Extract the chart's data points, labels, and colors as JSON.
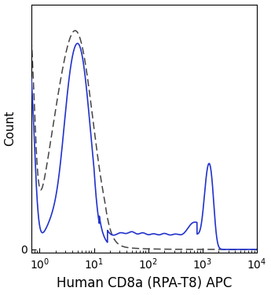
{
  "title": "",
  "xlabel": "Human CD8a (RPA-T8) APC",
  "ylabel": "Count",
  "xlim_low": 0.7,
  "xlim_high": 10000,
  "bg_color": "#ffffff",
  "border_color": "#000000",
  "solid_color": "#2233cc",
  "dashed_color": "#444444",
  "xlabel_fontsize": 12,
  "ylabel_fontsize": 11
}
